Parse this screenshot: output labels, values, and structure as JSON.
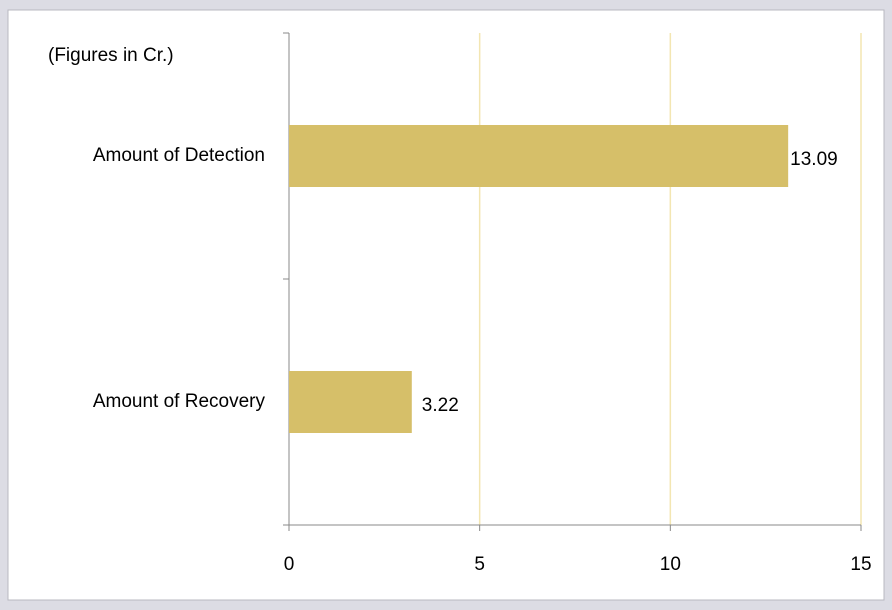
{
  "chart_data": {
    "type": "hbar",
    "subtitle": "(Figures in Cr.)",
    "categories": [
      "Amount of Detection",
      "Amount of Recovery"
    ],
    "values": [
      13.09,
      3.22
    ],
    "color": "#d6bf69",
    "xlim": [
      0,
      15
    ],
    "xticks": [
      0,
      5,
      10,
      15
    ],
    "grid": true,
    "grid_color": "#f3e6b2"
  }
}
